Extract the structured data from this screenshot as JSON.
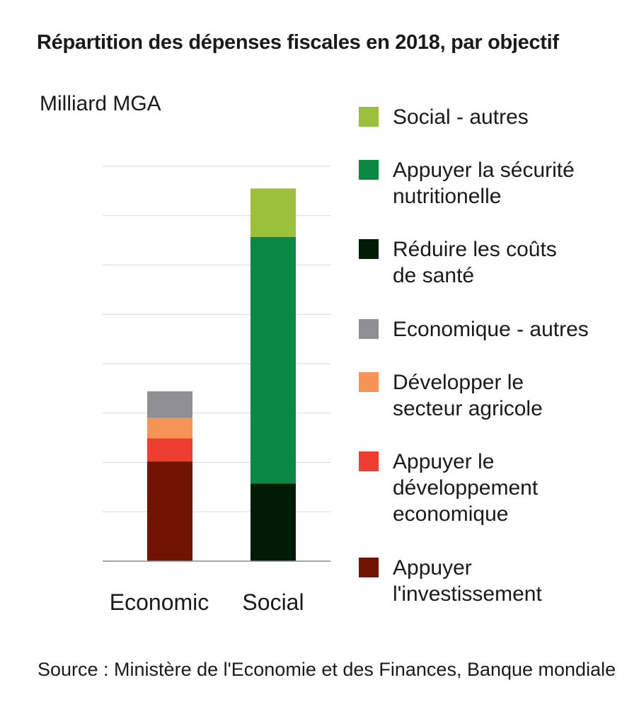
{
  "chart_data": {
    "type": "stacked-bar",
    "title": "Répartition des dépenses fiscales en 2018, par objectif",
    "ylabel": "Milliard MGA",
    "xlabel": "",
    "categories": [
      "Economic",
      "Social"
    ],
    "ylim": [
      0,
      800
    ],
    "grid": true,
    "legend_position": "right",
    "series": [
      {
        "name": "Appuyer l'investissement",
        "color": "#701300",
        "values": [
          202,
          0
        ]
      },
      {
        "name": "Appuyer le développement economique",
        "color": "#ee3e31",
        "values": [
          47,
          0
        ]
      },
      {
        "name": "Développer le secteur agricole",
        "color": "#f69356",
        "values": [
          41,
          0
        ]
      },
      {
        "name": "Economique - autres",
        "color": "#909092",
        "values": [
          54,
          0
        ]
      },
      {
        "name": "Réduire les coûts de santé",
        "color": "#011c04",
        "values": [
          0,
          157
        ]
      },
      {
        "name": "Appuyer la sécurité nutritionelle",
        "color": "#0c8845",
        "values": [
          0,
          500
        ]
      },
      {
        "name": "Social - autres",
        "color": "#9bc13c",
        "values": [
          0,
          98
        ]
      }
    ]
  },
  "legend": [
    {
      "label": "Social - autres",
      "color": "#9bc13c"
    },
    {
      "label": "Appuyer la sécurité\nnutritionelle",
      "color": "#0c8845"
    },
    {
      "label": "Réduire les coûts\nde santé",
      "color": "#011c04"
    },
    {
      "label": "Economique - autres",
      "color": "#909092"
    },
    {
      "label": "Développer le\nsecteur agricole",
      "color": "#f69356"
    },
    {
      "label": "Appuyer le\ndéveloppement\neconomique",
      "color": "#ee3e31"
    },
    {
      "label": "Appuyer\nl'investissement",
      "color": "#701300"
    }
  ],
  "source": "Source :  Ministère de l'Economie et des Finances, Banque mondiale"
}
